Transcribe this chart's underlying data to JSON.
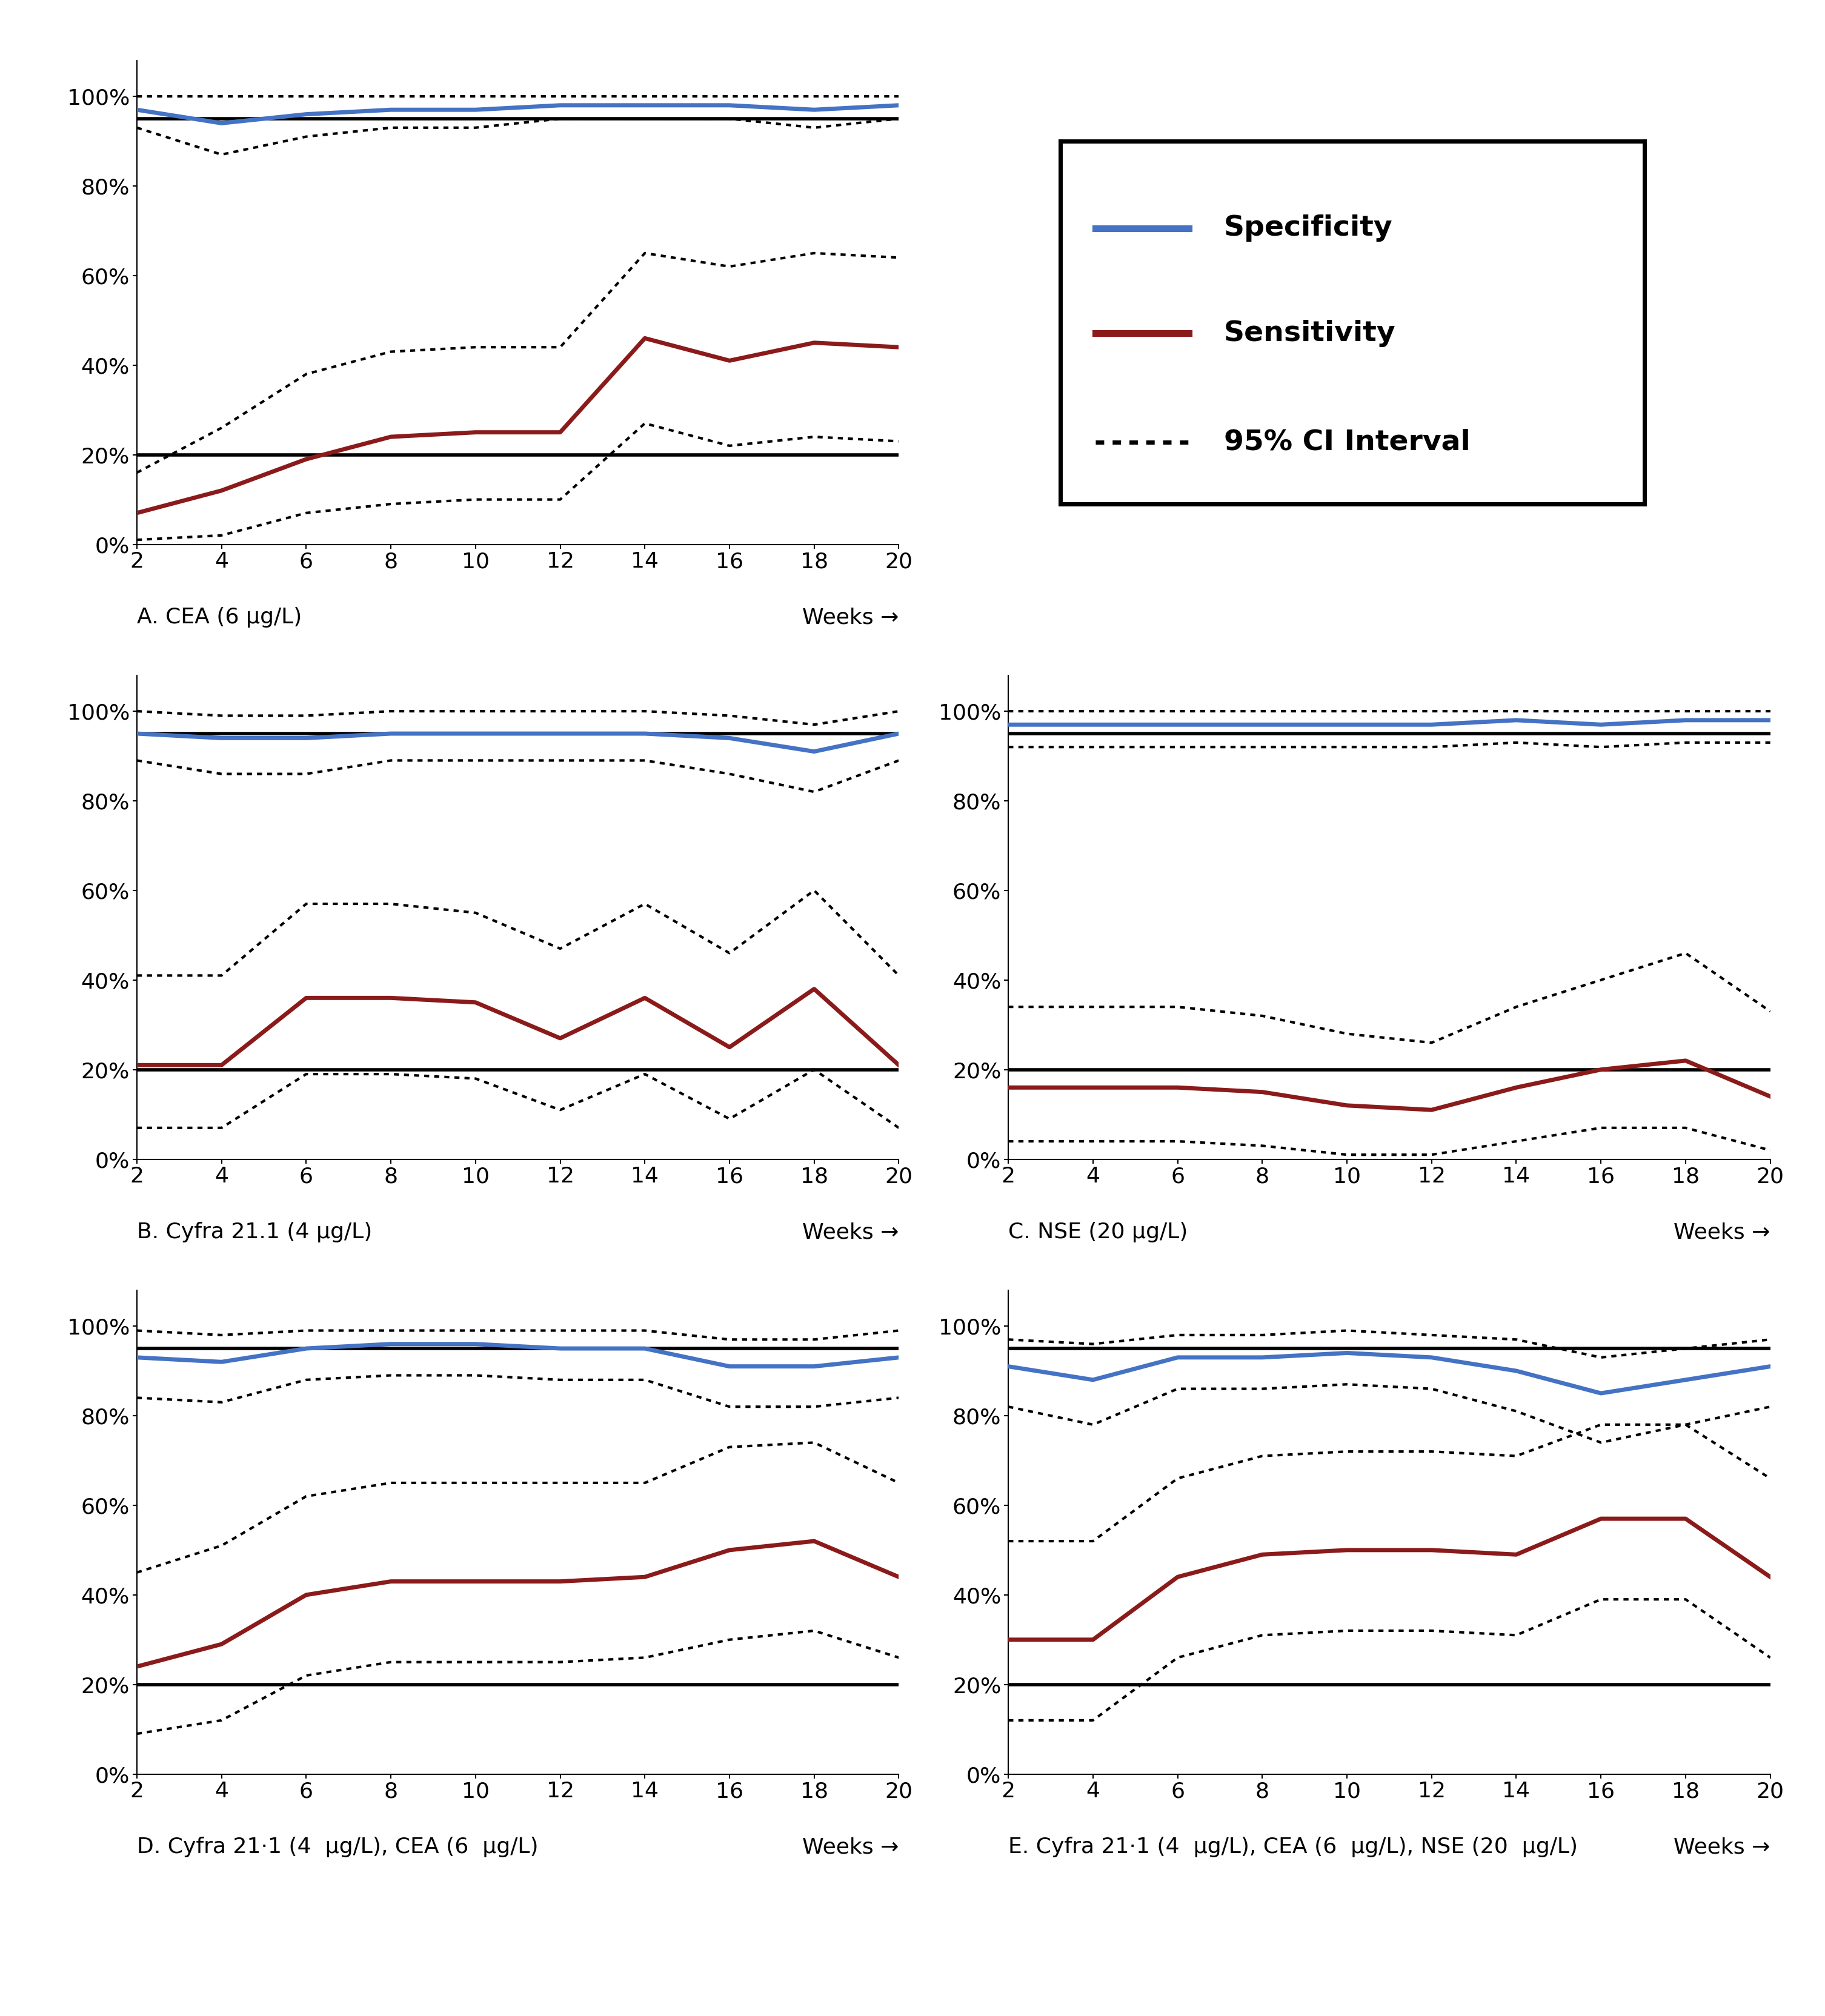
{
  "weeks": [
    2,
    4,
    6,
    8,
    10,
    12,
    14,
    16,
    18,
    20
  ],
  "panel_A": {
    "title": "A. CEA (6 μg/L)",
    "specificity": [
      0.97,
      0.94,
      0.96,
      0.97,
      0.97,
      0.98,
      0.98,
      0.98,
      0.97,
      0.98
    ],
    "sensitivity": [
      0.07,
      0.12,
      0.19,
      0.24,
      0.25,
      0.25,
      0.46,
      0.41,
      0.45,
      0.44
    ],
    "spec_ci_upper": [
      1.0,
      1.0,
      1.0,
      1.0,
      1.0,
      1.0,
      1.0,
      1.0,
      1.0,
      1.0
    ],
    "spec_ci_lower": [
      0.93,
      0.87,
      0.91,
      0.93,
      0.93,
      0.95,
      0.95,
      0.95,
      0.93,
      0.95
    ],
    "sens_ci_upper": [
      0.16,
      0.26,
      0.38,
      0.43,
      0.44,
      0.44,
      0.65,
      0.62,
      0.65,
      0.64
    ],
    "sens_ci_lower": [
      0.01,
      0.02,
      0.07,
      0.09,
      0.1,
      0.1,
      0.27,
      0.22,
      0.24,
      0.23
    ]
  },
  "panel_B": {
    "title": "B. Cyfra 21.1 (4 μg/L)",
    "specificity": [
      0.95,
      0.94,
      0.94,
      0.95,
      0.95,
      0.95,
      0.95,
      0.94,
      0.91,
      0.95
    ],
    "sensitivity": [
      0.21,
      0.21,
      0.36,
      0.36,
      0.35,
      0.27,
      0.36,
      0.25,
      0.38,
      0.21
    ],
    "spec_ci_upper": [
      1.0,
      0.99,
      0.99,
      1.0,
      1.0,
      1.0,
      1.0,
      0.99,
      0.97,
      1.0
    ],
    "spec_ci_lower": [
      0.89,
      0.86,
      0.86,
      0.89,
      0.89,
      0.89,
      0.89,
      0.86,
      0.82,
      0.89
    ],
    "sens_ci_upper": [
      0.41,
      0.41,
      0.57,
      0.57,
      0.55,
      0.47,
      0.57,
      0.46,
      0.6,
      0.41
    ],
    "sens_ci_lower": [
      0.07,
      0.07,
      0.19,
      0.19,
      0.18,
      0.11,
      0.19,
      0.09,
      0.2,
      0.07
    ]
  },
  "panel_C": {
    "title": "C. NSE (20 μg/L)",
    "specificity": [
      0.97,
      0.97,
      0.97,
      0.97,
      0.97,
      0.97,
      0.98,
      0.97,
      0.98,
      0.98
    ],
    "sensitivity": [
      0.16,
      0.16,
      0.16,
      0.15,
      0.12,
      0.11,
      0.16,
      0.2,
      0.22,
      0.14
    ],
    "spec_ci_upper": [
      1.0,
      1.0,
      1.0,
      1.0,
      1.0,
      1.0,
      1.0,
      1.0,
      1.0,
      1.0
    ],
    "spec_ci_lower": [
      0.92,
      0.92,
      0.92,
      0.92,
      0.92,
      0.92,
      0.93,
      0.92,
      0.93,
      0.93
    ],
    "sens_ci_upper": [
      0.34,
      0.34,
      0.34,
      0.32,
      0.28,
      0.26,
      0.34,
      0.4,
      0.46,
      0.33
    ],
    "sens_ci_lower": [
      0.04,
      0.04,
      0.04,
      0.03,
      0.01,
      0.01,
      0.04,
      0.07,
      0.07,
      0.02
    ]
  },
  "panel_D": {
    "title": "D. Cyfra 21·1 (4  μg/L), CEA (6  μg/L)",
    "specificity": [
      0.93,
      0.92,
      0.95,
      0.96,
      0.96,
      0.95,
      0.95,
      0.91,
      0.91,
      0.93
    ],
    "sensitivity": [
      0.24,
      0.29,
      0.4,
      0.43,
      0.43,
      0.43,
      0.44,
      0.5,
      0.52,
      0.44
    ],
    "spec_ci_upper": [
      0.99,
      0.98,
      0.99,
      0.99,
      0.99,
      0.99,
      0.99,
      0.97,
      0.97,
      0.99
    ],
    "spec_ci_lower": [
      0.84,
      0.83,
      0.88,
      0.89,
      0.89,
      0.88,
      0.88,
      0.82,
      0.82,
      0.84
    ],
    "sens_ci_upper": [
      0.45,
      0.51,
      0.62,
      0.65,
      0.65,
      0.65,
      0.65,
      0.73,
      0.74,
      0.65
    ],
    "sens_ci_lower": [
      0.09,
      0.12,
      0.22,
      0.25,
      0.25,
      0.25,
      0.26,
      0.3,
      0.32,
      0.26
    ]
  },
  "panel_E": {
    "title": "E. Cyfra 21·1 (4  μg/L), CEA (6  μg/L), NSE (20  μg/L)",
    "specificity": [
      0.91,
      0.88,
      0.93,
      0.93,
      0.94,
      0.93,
      0.9,
      0.85,
      0.88,
      0.91
    ],
    "sensitivity": [
      0.3,
      0.3,
      0.44,
      0.49,
      0.5,
      0.5,
      0.49,
      0.57,
      0.57,
      0.44
    ],
    "spec_ci_upper": [
      0.97,
      0.96,
      0.98,
      0.98,
      0.99,
      0.98,
      0.97,
      0.93,
      0.95,
      0.97
    ],
    "spec_ci_lower": [
      0.82,
      0.78,
      0.86,
      0.86,
      0.87,
      0.86,
      0.81,
      0.74,
      0.78,
      0.82
    ],
    "sens_ci_upper": [
      0.52,
      0.52,
      0.66,
      0.71,
      0.72,
      0.72,
      0.71,
      0.78,
      0.78,
      0.66
    ],
    "sens_ci_lower": [
      0.12,
      0.12,
      0.26,
      0.31,
      0.32,
      0.32,
      0.31,
      0.39,
      0.39,
      0.26
    ]
  },
  "specificity_color": "#4472C4",
  "sensitivity_color": "#8B1A1A",
  "ci_color": "#000000",
  "hline_color": "#000000",
  "hline_20": 0.2,
  "hline_95": 0.95,
  "ylabel_ticks": [
    "0%",
    "20%",
    "40%",
    "60%",
    "80%",
    "100%"
  ],
  "yticks": [
    0.0,
    0.2,
    0.4,
    0.6,
    0.8,
    1.0
  ],
  "xticks": [
    2,
    4,
    6,
    8,
    10,
    12,
    14,
    16,
    18,
    20
  ],
  "xlabel": "Weeks →",
  "legend_labels": [
    "Specificity",
    "Sensitivity",
    "95% CI Interval"
  ],
  "background_color": "#ffffff"
}
